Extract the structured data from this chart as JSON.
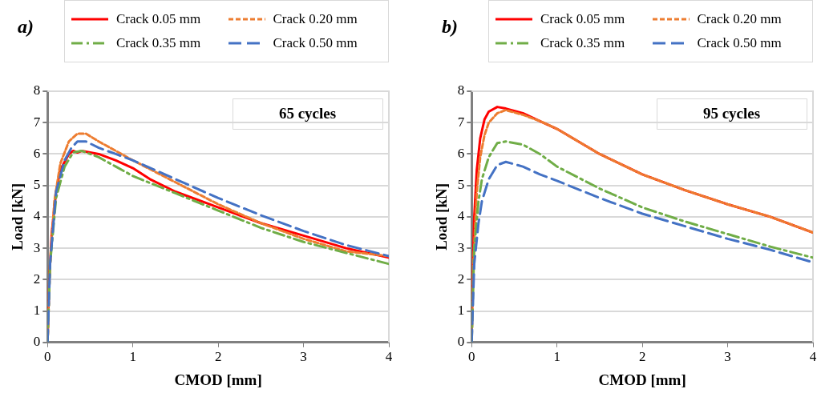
{
  "chart_data": [
    {
      "type": "line",
      "title": "a)",
      "xlabel": "CMOD [mm]",
      "ylabel": "Load [kN]",
      "annotations": [
        "65 cycles"
      ],
      "xlim": [
        0,
        4
      ],
      "xticks": [
        0,
        1,
        2,
        3,
        4
      ],
      "ylim": [
        0,
        8
      ],
      "yticks": [
        0,
        1,
        2,
        3,
        4,
        5,
        6,
        7,
        8
      ],
      "grid": "y",
      "legend": "top",
      "marker": "none",
      "series": [
        {
          "name": "Crack 0.05 mm",
          "color": "#ff0000",
          "line_style": "solid",
          "x": [
            0,
            0.02,
            0.05,
            0.1,
            0.15,
            0.25,
            0.3,
            0.35,
            0.4,
            0.6,
            0.8,
            1.0,
            1.2,
            1.5,
            2,
            2.5,
            3,
            3.5,
            4
          ],
          "values": [
            0,
            2,
            3.5,
            4.8,
            5.5,
            6.0,
            6.1,
            6.05,
            6.1,
            6.0,
            5.8,
            5.55,
            5.2,
            4.8,
            4.3,
            3.8,
            3.4,
            3.0,
            2.7
          ]
        },
        {
          "name": "Crack 0.20 mm",
          "color": "#ed7d31",
          "line_style": "dotted",
          "x": [
            0,
            0.03,
            0.08,
            0.15,
            0.25,
            0.35,
            0.45,
            0.6,
            0.8,
            1.0,
            1.5,
            2,
            2.5,
            3,
            3.5,
            4
          ],
          "values": [
            0,
            2.5,
            4.5,
            5.7,
            6.4,
            6.65,
            6.65,
            6.4,
            6.1,
            5.8,
            5.1,
            4.4,
            3.8,
            3.3,
            2.9,
            2.75
          ]
        },
        {
          "name": "Crack 0.35 mm",
          "color": "#70ad47",
          "line_style": "dashdot",
          "x": [
            0,
            0.03,
            0.1,
            0.2,
            0.3,
            0.4,
            0.6,
            0.8,
            1.0,
            1.5,
            2,
            2.5,
            3,
            3.5,
            4
          ],
          "values": [
            0,
            2.5,
            4.6,
            5.6,
            6.05,
            6.1,
            5.9,
            5.6,
            5.3,
            4.75,
            4.2,
            3.65,
            3.2,
            2.85,
            2.5
          ]
        },
        {
          "name": "Crack 0.50 mm",
          "color": "#4472c4",
          "line_style": "dashed",
          "x": [
            0,
            0.03,
            0.1,
            0.2,
            0.28,
            0.35,
            0.45,
            0.6,
            0.8,
            1.0,
            1.5,
            2,
            2.5,
            3,
            3.5,
            4
          ],
          "values": [
            0,
            2.5,
            4.8,
            5.8,
            6.2,
            6.4,
            6.4,
            6.2,
            6.0,
            5.8,
            5.2,
            4.6,
            4.05,
            3.55,
            3.1,
            2.75
          ]
        }
      ]
    },
    {
      "type": "line",
      "title": "b)",
      "xlabel": "CMOD [mm]",
      "ylabel": "Load [kN]",
      "annotations": [
        "95 cycles"
      ],
      "xlim": [
        0,
        4
      ],
      "xticks": [
        0,
        1,
        2,
        3,
        4
      ],
      "ylim": [
        0,
        8
      ],
      "yticks": [
        0,
        1,
        2,
        3,
        4,
        5,
        6,
        7,
        8
      ],
      "grid": "y",
      "legend": "top",
      "marker": "none",
      "series": [
        {
          "name": "Crack 0.05 mm",
          "color": "#ff0000",
          "line_style": "solid",
          "x": [
            0,
            0.01,
            0.03,
            0.06,
            0.1,
            0.15,
            0.2,
            0.3,
            0.4,
            0.6,
            0.8,
            1,
            1.5,
            2,
            2.5,
            3,
            3.5,
            4
          ],
          "values": [
            0,
            2,
            4,
            5.5,
            6.5,
            7.1,
            7.35,
            7.5,
            7.45,
            7.3,
            7.05,
            6.8,
            6.0,
            5.35,
            4.85,
            4.4,
            4.0,
            3.5
          ]
        },
        {
          "name": "Crack 0.20 mm",
          "color": "#ed7d31",
          "line_style": "dotted",
          "x": [
            0,
            0.02,
            0.06,
            0.1,
            0.15,
            0.2,
            0.3,
            0.4,
            0.6,
            0.8,
            1,
            1.5,
            2,
            2.5,
            3,
            3.5,
            4
          ],
          "values": [
            0,
            2.5,
            4.8,
            5.9,
            6.6,
            7.0,
            7.3,
            7.4,
            7.25,
            7.05,
            6.8,
            6.0,
            5.35,
            4.85,
            4.4,
            4.0,
            3.5
          ]
        },
        {
          "name": "Crack 0.35 mm",
          "color": "#70ad47",
          "line_style": "dashdot",
          "x": [
            0,
            0.03,
            0.08,
            0.12,
            0.2,
            0.3,
            0.4,
            0.6,
            0.8,
            1,
            1.5,
            2,
            2.5,
            3,
            3.5,
            4
          ],
          "values": [
            0,
            3,
            4.5,
            5.2,
            5.9,
            6.35,
            6.4,
            6.3,
            6.0,
            5.6,
            4.9,
            4.3,
            3.85,
            3.45,
            3.05,
            2.7
          ]
        },
        {
          "name": "Crack 0.50 mm",
          "color": "#4472c4",
          "line_style": "dashed",
          "x": [
            0,
            0.03,
            0.08,
            0.12,
            0.2,
            0.3,
            0.4,
            0.6,
            0.8,
            1,
            1.5,
            2,
            2.5,
            3,
            3.5,
            4
          ],
          "values": [
            0,
            2.5,
            3.8,
            4.5,
            5.2,
            5.65,
            5.75,
            5.6,
            5.35,
            5.15,
            4.6,
            4.1,
            3.7,
            3.3,
            2.95,
            2.55
          ]
        }
      ]
    }
  ]
}
